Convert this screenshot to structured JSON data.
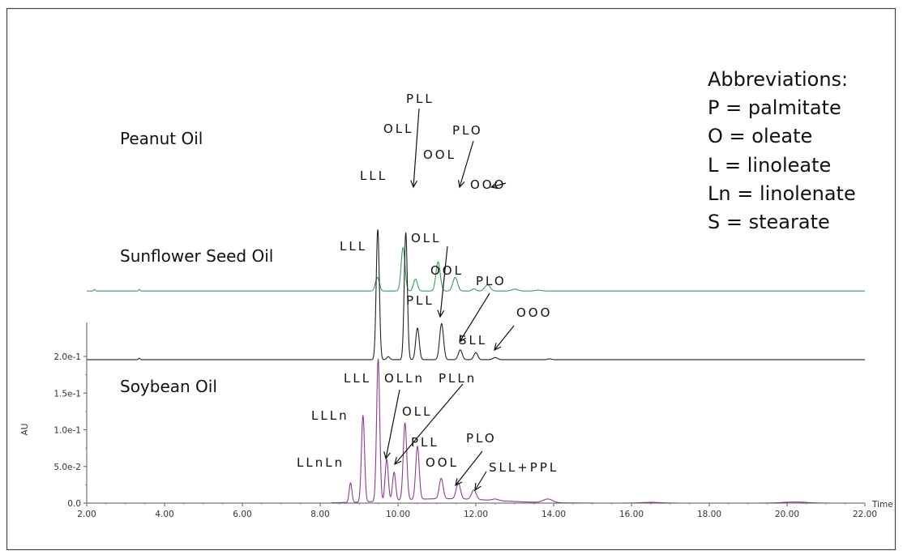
{
  "chart_data": {
    "type": "line",
    "x_axis": {
      "label": "Time",
      "min": 2.0,
      "max": 22.0,
      "ticks": [
        "2.00",
        "4.00",
        "6.00",
        "8.00",
        "10.00",
        "12.00",
        "14.00",
        "16.00",
        "18.00",
        "20.00",
        "22.00"
      ]
    },
    "y_axis": {
      "label": "AU",
      "min": 0.0,
      "max": 0.2,
      "ticks": [
        "0.0",
        "5.0e-2",
        "1.0e-1",
        "1.5e-1",
        "2.0e-1"
      ]
    },
    "grid": false,
    "legend": "none",
    "traces": [
      {
        "name": "Peanut Oil",
        "color": "#3c9a5c",
        "baseline_offset": 0.2893,
        "peaks": [
          {
            "t": 2.2,
            "h": 0.002,
            "w": 0.02
          },
          {
            "t": 3.35,
            "h": 0.002,
            "w": 0.02
          },
          {
            "t": 9.47,
            "h": 0.0187,
            "w": 0.05
          },
          {
            "t": 10.13,
            "h": 0.0591,
            "w": 0.05
          },
          {
            "t": 10.45,
            "h": 0.0161,
            "w": 0.05
          },
          {
            "t": 11.03,
            "h": 0.0397,
            "w": 0.055
          },
          {
            "t": 11.47,
            "h": 0.0187,
            "w": 0.06
          },
          {
            "t": 11.95,
            "h": 0.003,
            "w": 0.05
          },
          {
            "t": 12.3,
            "h": 0.0083,
            "w": 0.07
          },
          {
            "t": 13.0,
            "h": 0.0025,
            "w": 0.08
          },
          {
            "t": 13.6,
            "h": 0.0012,
            "w": 0.08
          }
        ],
        "labels": [
          "LLL",
          "OLL",
          "PLL",
          "OOL",
          "PLO",
          "OOO"
        ]
      },
      {
        "name": "Sunflower Seed Oil",
        "color": "#222222",
        "baseline_offset": 0.1956,
        "peaks": [
          {
            "t": 3.35,
            "h": 0.002,
            "w": 0.02
          },
          {
            "t": 9.48,
            "h": 0.1775,
            "w": 0.04
          },
          {
            "t": 9.75,
            "h": 0.0041,
            "w": 0.04
          },
          {
            "t": 10.2,
            "h": 0.1732,
            "w": 0.04
          },
          {
            "t": 10.5,
            "h": 0.0431,
            "w": 0.045
          },
          {
            "t": 11.12,
            "h": 0.0492,
            "w": 0.05
          },
          {
            "t": 11.6,
            "h": 0.0134,
            "w": 0.05
          },
          {
            "t": 12.0,
            "h": 0.0096,
            "w": 0.05
          },
          {
            "t": 12.5,
            "h": 0.003,
            "w": 0.06
          },
          {
            "t": 13.9,
            "h": 0.0012,
            "w": 0.05
          }
        ],
        "labels": [
          "LLL",
          "OLL",
          "OOL",
          "PLO",
          "PLL",
          "SLL",
          "OOO"
        ]
      },
      {
        "name": "Soybean Oil",
        "color": "#8a3d8a",
        "baseline_offset": 0.0,
        "peaks": [
          {
            "t": 8.78,
            "h": 0.0265,
            "w": 0.035
          },
          {
            "t": 9.1,
            "h": 0.1176,
            "w": 0.04
          },
          {
            "t": 9.49,
            "h": 0.1941,
            "w": 0.04
          },
          {
            "t": 9.71,
            "h": 0.0567,
            "w": 0.04
          },
          {
            "t": 9.9,
            "h": 0.0385,
            "w": 0.04
          },
          {
            "t": 10.18,
            "h": 0.1048,
            "w": 0.045
          },
          {
            "t": 10.5,
            "h": 0.0722,
            "w": 0.045
          },
          {
            "t": 11.11,
            "h": 0.0278,
            "w": 0.05
          },
          {
            "t": 11.55,
            "h": 0.0214,
            "w": 0.055
          },
          {
            "t": 11.95,
            "h": 0.0128,
            "w": 0.06
          },
          {
            "t": 12.5,
            "h": 0.002,
            "w": 0.08
          },
          {
            "t": 13.85,
            "h": 0.0049,
            "w": 0.12
          },
          {
            "t": 16.5,
            "h": 0.001,
            "w": 0.25
          },
          {
            "t": 20.2,
            "h": 0.0015,
            "w": 0.3
          }
        ],
        "labels": [
          "LLL",
          "OLLn",
          "PLLn",
          "LLLn",
          "OLL",
          "PLL",
          "LLnLn",
          "OOL",
          "PLO",
          "SLL+PPL"
        ]
      }
    ]
  },
  "abbreviations": {
    "title": "Abbreviations:",
    "items": [
      "P = palmitate",
      "O = oleate",
      "L = linoleate",
      "Ln = linolenate",
      "S = stearate"
    ]
  }
}
